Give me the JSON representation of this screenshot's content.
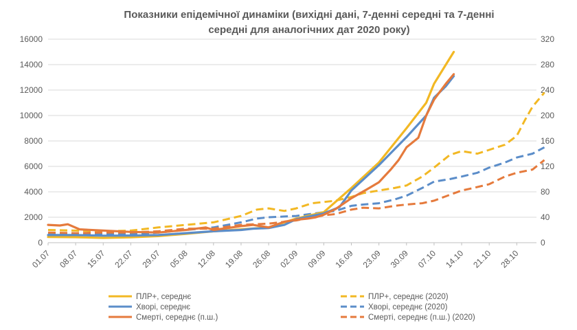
{
  "chart_data": {
    "type": "line",
    "title": "Показники епідемічної динаміки (вихідні дані, 7-денні середні та 7-денні середні для аналогічних дат 2020 року)",
    "title_lines": [
      "Показники епідемічної динаміки (вихідні дані, 7-денні середні та 7-денні",
      "середні для аналогічних дат 2020 року)"
    ],
    "x_labels": [
      "01.07",
      "08.07",
      "15.07",
      "22.07",
      "29.07",
      "05.08",
      "12.08",
      "19.08",
      "26.08",
      "02.09",
      "09.09",
      "16.09",
      "23.09",
      "30.09",
      "07.10",
      "14.10",
      "21.10",
      "28.10"
    ],
    "x_label_days": [
      0,
      7,
      14,
      21,
      28,
      35,
      42,
      49,
      56,
      63,
      70,
      77,
      84,
      91,
      98,
      105,
      112,
      119
    ],
    "x_range": [
      0,
      124
    ],
    "y_left": {
      "min": 0,
      "max": 16000,
      "ticks": [
        "0",
        "2000",
        "4000",
        "6000",
        "8000",
        "10000",
        "12000",
        "14000",
        "16000"
      ]
    },
    "y_right": {
      "min": 0,
      "max": 320,
      "ticks": [
        "0",
        "40",
        "80",
        "120",
        "160",
        "200",
        "240",
        "280",
        "320"
      ]
    },
    "grid": true,
    "legend_position": "bottom",
    "series": [
      {
        "name": "ПЛР+, середнє",
        "axis": "left",
        "color": "#F2B824",
        "dash": "solid",
        "points": [
          [
            0,
            450
          ],
          [
            7,
            430
          ],
          [
            14,
            380
          ],
          [
            21,
            420
          ],
          [
            28,
            520
          ],
          [
            35,
            700
          ],
          [
            42,
            900
          ],
          [
            49,
            1050
          ],
          [
            56,
            1200
          ],
          [
            63,
            1900
          ],
          [
            70,
            2400
          ],
          [
            77,
            4300
          ],
          [
            84,
            6300
          ],
          [
            91,
            9000
          ],
          [
            96,
            11000
          ],
          [
            98,
            12500
          ],
          [
            101,
            14000
          ],
          [
            103,
            15000
          ]
        ]
      },
      {
        "name": "Хворі, середнє",
        "axis": "left",
        "color": "#5B8DC9",
        "dash": "solid",
        "points": [
          [
            0,
            600
          ],
          [
            7,
            600
          ],
          [
            14,
            550
          ],
          [
            21,
            560
          ],
          [
            28,
            600
          ],
          [
            35,
            750
          ],
          [
            42,
            900
          ],
          [
            49,
            1000
          ],
          [
            52,
            1100
          ],
          [
            56,
            1150
          ],
          [
            60,
            1400
          ],
          [
            63,
            1850
          ],
          [
            70,
            2300
          ],
          [
            74,
            2800
          ],
          [
            77,
            4100
          ],
          [
            84,
            6100
          ],
          [
            91,
            8300
          ],
          [
            96,
            10000
          ],
          [
            98,
            11400
          ],
          [
            101,
            12300
          ],
          [
            103,
            13100
          ]
        ]
      },
      {
        "name": "Смерті, середнє (п.ш.)",
        "axis": "right",
        "color": "#E57A3C",
        "dash": "solid",
        "points": [
          [
            0,
            28
          ],
          [
            3,
            27
          ],
          [
            5,
            29
          ],
          [
            8,
            21
          ],
          [
            14,
            19
          ],
          [
            21,
            17
          ],
          [
            28,
            16
          ],
          [
            35,
            20
          ],
          [
            40,
            24
          ],
          [
            42,
            20
          ],
          [
            49,
            26
          ],
          [
            52,
            28
          ],
          [
            56,
            24
          ],
          [
            60,
            33
          ],
          [
            63,
            36
          ],
          [
            66,
            38
          ],
          [
            68,
            40
          ],
          [
            70,
            44
          ],
          [
            73,
            53
          ],
          [
            77,
            70
          ],
          [
            81,
            84
          ],
          [
            84,
            95
          ],
          [
            87,
            115
          ],
          [
            89,
            130
          ],
          [
            91,
            150
          ],
          [
            94,
            165
          ],
          [
            96,
            200
          ],
          [
            98,
            225
          ],
          [
            101,
            250
          ],
          [
            103,
            265
          ]
        ]
      },
      {
        "name": "ПЛР+, середнє (2020)",
        "axis": "left",
        "color": "#F2B824",
        "dash": "dashed",
        "points": [
          [
            0,
            1000
          ],
          [
            7,
            950
          ],
          [
            14,
            900
          ],
          [
            21,
            950
          ],
          [
            28,
            1200
          ],
          [
            35,
            1400
          ],
          [
            42,
            1600
          ],
          [
            49,
            2100
          ],
          [
            53,
            2600
          ],
          [
            56,
            2700
          ],
          [
            60,
            2500
          ],
          [
            63,
            2700
          ],
          [
            67,
            3100
          ],
          [
            70,
            3200
          ],
          [
            73,
            3300
          ],
          [
            77,
            3600
          ],
          [
            80,
            3900
          ],
          [
            84,
            4100
          ],
          [
            88,
            4300
          ],
          [
            91,
            4500
          ],
          [
            95,
            5200
          ],
          [
            98,
            5900
          ],
          [
            102,
            6900
          ],
          [
            105,
            7200
          ],
          [
            109,
            7000
          ],
          [
            112,
            7300
          ],
          [
            116,
            7700
          ],
          [
            119,
            8400
          ],
          [
            121,
            9600
          ],
          [
            123,
            10700
          ],
          [
            126,
            11800
          ]
        ]
      },
      {
        "name": "Хворі, середнє (2020)",
        "axis": "left",
        "color": "#5B8DC9",
        "dash": "dashed",
        "points": [
          [
            0,
            750
          ],
          [
            7,
            700
          ],
          [
            14,
            650
          ],
          [
            21,
            650
          ],
          [
            28,
            800
          ],
          [
            35,
            1000
          ],
          [
            42,
            1200
          ],
          [
            49,
            1600
          ],
          [
            53,
            1900
          ],
          [
            56,
            2000
          ],
          [
            63,
            2100
          ],
          [
            70,
            2400
          ],
          [
            73,
            2500
          ],
          [
            77,
            2900
          ],
          [
            80,
            3000
          ],
          [
            84,
            3100
          ],
          [
            88,
            3400
          ],
          [
            91,
            3700
          ],
          [
            95,
            4300
          ],
          [
            98,
            4800
          ],
          [
            102,
            5000
          ],
          [
            105,
            5200
          ],
          [
            109,
            5500
          ],
          [
            112,
            5900
          ],
          [
            116,
            6300
          ],
          [
            119,
            6700
          ],
          [
            123,
            7000
          ],
          [
            126,
            7500
          ]
        ]
      },
      {
        "name": "Смерті, середнє (п.ш.) (2020)",
        "axis": "right",
        "color": "#E57A3C",
        "dash": "dashed",
        "points": [
          [
            0,
            16
          ],
          [
            7,
            15
          ],
          [
            14,
            16
          ],
          [
            21,
            16
          ],
          [
            28,
            18
          ],
          [
            35,
            22
          ],
          [
            42,
            22
          ],
          [
            49,
            28
          ],
          [
            56,
            30
          ],
          [
            63,
            35
          ],
          [
            70,
            43
          ],
          [
            73,
            45
          ],
          [
            77,
            52
          ],
          [
            80,
            55
          ],
          [
            84,
            54
          ],
          [
            88,
            58
          ],
          [
            91,
            60
          ],
          [
            95,
            62
          ],
          [
            98,
            66
          ],
          [
            101,
            73
          ],
          [
            105,
            82
          ],
          [
            108,
            86
          ],
          [
            112,
            92
          ],
          [
            116,
            104
          ],
          [
            119,
            110
          ],
          [
            123,
            115
          ],
          [
            126,
            130
          ]
        ]
      }
    ]
  }
}
